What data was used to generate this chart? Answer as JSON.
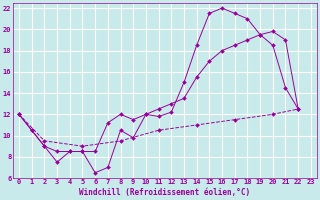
{
  "background_color": "#c8eaea",
  "grid_color": "#ffffff",
  "line_color": "#990099",
  "marker": "D",
  "marker_size": 2.0,
  "xlabel": "Windchill (Refroidissement éolien,°C)",
  "xlim": [
    -0.5,
    23.5
  ],
  "ylim": [
    6,
    22.5
  ],
  "xticks": [
    0,
    1,
    2,
    3,
    4,
    5,
    6,
    7,
    8,
    9,
    10,
    11,
    12,
    13,
    14,
    15,
    16,
    17,
    18,
    19,
    20,
    21,
    22,
    23
  ],
  "yticks": [
    6,
    8,
    10,
    12,
    14,
    16,
    18,
    20,
    22
  ],
  "series1": [
    [
      0,
      12.0
    ],
    [
      1,
      10.5
    ],
    [
      2,
      9.0
    ],
    [
      3,
      7.5
    ],
    [
      4,
      8.5
    ],
    [
      5,
      8.5
    ],
    [
      6,
      6.5
    ],
    [
      7,
      7.0
    ],
    [
      8,
      10.5
    ],
    [
      9,
      9.8
    ],
    [
      10,
      12.0
    ],
    [
      11,
      11.8
    ],
    [
      12,
      12.2
    ],
    [
      13,
      15.0
    ],
    [
      14,
      18.5
    ],
    [
      15,
      21.5
    ],
    [
      16,
      22.0
    ],
    [
      17,
      21.5
    ],
    [
      18,
      21.0
    ],
    [
      19,
      19.5
    ],
    [
      20,
      18.5
    ],
    [
      21,
      14.5
    ],
    [
      22,
      12.5
    ]
  ],
  "series2": [
    [
      0,
      12.0
    ],
    [
      1,
      10.5
    ],
    [
      2,
      9.0
    ],
    [
      3,
      8.5
    ],
    [
      4,
      8.5
    ],
    [
      5,
      8.5
    ],
    [
      6,
      8.5
    ],
    [
      7,
      11.2
    ],
    [
      8,
      12.0
    ],
    [
      9,
      11.5
    ],
    [
      10,
      12.0
    ],
    [
      11,
      12.5
    ],
    [
      12,
      13.0
    ],
    [
      13,
      13.5
    ],
    [
      14,
      15.5
    ],
    [
      15,
      17.0
    ],
    [
      16,
      18.0
    ],
    [
      17,
      18.5
    ],
    [
      18,
      19.0
    ],
    [
      19,
      19.5
    ],
    [
      20,
      19.8
    ],
    [
      21,
      19.0
    ],
    [
      22,
      12.5
    ]
  ],
  "series3": [
    [
      0,
      12.0
    ],
    [
      2,
      9.5
    ],
    [
      5,
      9.0
    ],
    [
      8,
      9.5
    ],
    [
      11,
      10.5
    ],
    [
      14,
      11.0
    ],
    [
      17,
      11.5
    ],
    [
      20,
      12.0
    ],
    [
      22,
      12.5
    ]
  ]
}
